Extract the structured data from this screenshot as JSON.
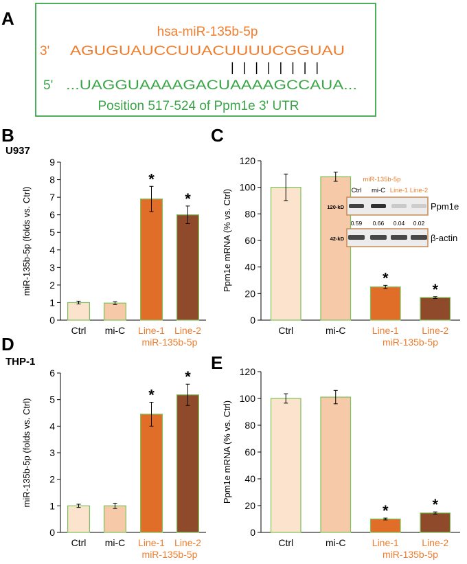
{
  "panel_a": {
    "letter": "A",
    "mirna_name": "hsa-miR-135b-5p",
    "mirna_end": "3'",
    "mirna_seq": "AGUGUAUCCUUACUUUUCGGUAU",
    "pairing": "| | | | | | | |",
    "utr_end": "5'",
    "utr_seq": "...UAGGUAAAAGACUAAAAGCCAUA...",
    "position_label": "Position 517-524 of Ppm1e 3' UTR"
  },
  "colors": {
    "orange_text": "#ef7d2d",
    "green": "#3aa547",
    "bar_ctrl": "#fbe3ce",
    "bar_mic": "#f6c9a8",
    "bar_line1": "#e06d28",
    "bar_line2": "#8f4a2b"
  },
  "chart_data": [
    {
      "panel": "B",
      "type": "bar",
      "title": "U937",
      "ylabel": "miR-135b-5p (folds vs. Ctrl)",
      "ylim": [
        0,
        9
      ],
      "yticks": [
        0,
        1,
        2,
        3,
        4,
        5,
        6,
        7,
        8,
        9
      ],
      "categories": [
        "Ctrl",
        "mi-C",
        "Line-1",
        "Line-2"
      ],
      "group_label": "miR-135b-5p",
      "values": [
        1.0,
        0.97,
        6.9,
        6.0
      ],
      "errors": [
        0.08,
        0.08,
        0.72,
        0.5
      ],
      "significance": [
        "",
        "",
        "*",
        "*"
      ]
    },
    {
      "panel": "C",
      "type": "bar",
      "title": "",
      "ylabel": "Ppm1e mRNA (% vs. Ctrl)",
      "ylim": [
        0,
        120
      ],
      "yticks": [
        0,
        20,
        40,
        60,
        80,
        100,
        120
      ],
      "categories": [
        "Ctrl",
        "mi-C",
        "Line-1",
        "Line-2"
      ],
      "group_label": "miR-135b-5p",
      "values": [
        100,
        108,
        25,
        17
      ],
      "errors": [
        10,
        3.5,
        1.2,
        0.7
      ],
      "significance": [
        "",
        "",
        "*",
        "*"
      ]
    },
    {
      "panel": "D",
      "type": "bar",
      "title": "THP-1",
      "ylabel": "miR-135b-5p (folds vs. Ctrl)",
      "ylim": [
        0,
        6
      ],
      "yticks": [
        0,
        1,
        2,
        3,
        4,
        5,
        6
      ],
      "categories": [
        "Ctrl",
        "mi-C",
        "Line-1",
        "Line-2"
      ],
      "group_label": "miR-135b-5p",
      "values": [
        1.0,
        1.0,
        4.45,
        5.18
      ],
      "errors": [
        0.06,
        0.1,
        0.45,
        0.4
      ],
      "significance": [
        "",
        "",
        "*",
        "*"
      ]
    },
    {
      "panel": "E",
      "type": "bar",
      "title": "",
      "ylabel": "Ppm1e mRNA (% vs. Ctrl)",
      "ylim": [
        0,
        120
      ],
      "yticks": [
        0,
        20,
        40,
        60,
        80,
        100,
        120
      ],
      "categories": [
        "Ctrl",
        "mi-C",
        "Line-1",
        "Line-2"
      ],
      "group_label": "miR-135b-5p",
      "values": [
        100,
        101,
        10,
        14.5
      ],
      "errors": [
        3.5,
        5,
        0.7,
        0.8
      ],
      "significance": [
        "",
        "",
        "*",
        "*"
      ]
    }
  ],
  "blot": {
    "group_label": "miR-135b-5p",
    "lanes": [
      "Ctrl",
      "mi-C",
      "Line-1",
      "Line-2"
    ],
    "row1_marker": "120-kD",
    "row1_protein": "Ppm1e",
    "quant": [
      "0.59",
      "0.66",
      "0.04",
      "0.02"
    ],
    "row2_marker": "42-kD",
    "row2_protein": "β-actin",
    "row1_band_intensity": [
      0.59,
      0.66,
      0.04,
      0.02
    ],
    "row2_band_intensity": [
      1,
      1,
      1,
      1
    ]
  }
}
